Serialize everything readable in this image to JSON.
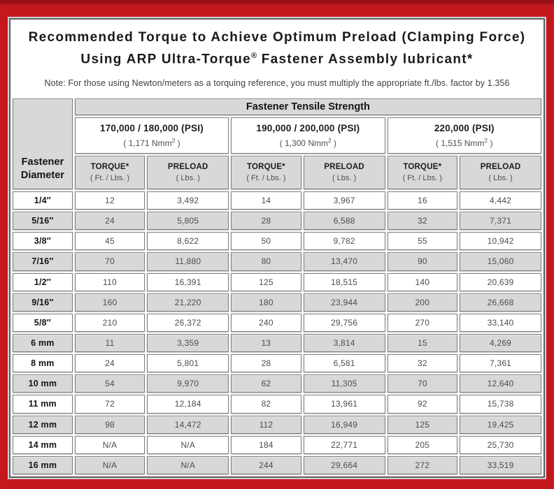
{
  "title": {
    "line1": "Recommended Torque to Achieve Optimum Preload (Clamping Force)",
    "line2_pre": "Using ARP Ultra-Torque",
    "line2_sup": "®",
    "line2_post": " Fastener Assembly lubricant*",
    "note": "Note: For those using Newton/meters as a torquing reference, you must multiply the appropriate ft./lbs. factor by 1.356"
  },
  "table": {
    "corner": {
      "line1": "Fastener",
      "line2": "Diameter"
    },
    "tensile_header": "Fastener Tensile Strength",
    "groups": [
      {
        "psi": "170,000 / 180,000 (PSI)",
        "nmm_pre": "( 1,171 Nmm",
        "nmm_sup": "2",
        "nmm_post": " )"
      },
      {
        "psi": "190,000 / 200,000 (PSI)",
        "nmm_pre": "( 1,300 Nmm",
        "nmm_sup": "2",
        "nmm_post": " )"
      },
      {
        "psi": "220,000 (PSI)",
        "nmm_pre": "( 1,515 Nmm",
        "nmm_sup": "2",
        "nmm_post": " )"
      }
    ],
    "col_heads": {
      "torque_label": "TORQUE*",
      "torque_sub": "( Ft. / Lbs. )",
      "preload_label": "PRELOAD",
      "preload_sub": "( Lbs. )"
    },
    "rows": [
      {
        "dia": "1/4″",
        "values": [
          "12",
          "3,492",
          "14",
          "3,967",
          "16",
          "4,442"
        ]
      },
      {
        "dia": "5/16″",
        "values": [
          "24",
          "5,805",
          "28",
          "6,588",
          "32",
          "7,371"
        ]
      },
      {
        "dia": "3/8″",
        "values": [
          "45",
          "8,622",
          "50",
          "9,782",
          "55",
          "10,942"
        ]
      },
      {
        "dia": "7/16″",
        "values": [
          "70",
          "11,880",
          "80",
          "13,470",
          "90",
          "15,060"
        ]
      },
      {
        "dia": "1/2″",
        "values": [
          "110",
          "16,391",
          "125",
          "18,515",
          "140",
          "20,639"
        ]
      },
      {
        "dia": "9/16″",
        "values": [
          "160",
          "21,220",
          "180",
          "23,944",
          "200",
          "26,668"
        ]
      },
      {
        "dia": "5/8″",
        "values": [
          "210",
          "26,372",
          "240",
          "29,756",
          "270",
          "33,140"
        ]
      },
      {
        "dia": "6 mm",
        "values": [
          "11",
          "3,359",
          "13",
          "3,814",
          "15",
          "4,269"
        ]
      },
      {
        "dia": "8 mm",
        "values": [
          "24",
          "5,801",
          "28",
          "6,581",
          "32",
          "7,361"
        ]
      },
      {
        "dia": "10 mm",
        "values": [
          "54",
          "9,970",
          "62",
          "11,305",
          "70",
          "12,640"
        ]
      },
      {
        "dia": "11 mm",
        "values": [
          "72",
          "12,184",
          "82",
          "13,961",
          "92",
          "15,738"
        ]
      },
      {
        "dia": "12 mm",
        "values": [
          "98",
          "14,472",
          "112",
          "16,949",
          "125",
          "19,425"
        ]
      },
      {
        "dia": "14 mm",
        "values": [
          "N/A",
          "N/A",
          "184",
          "22,771",
          "205",
          "25,730"
        ]
      },
      {
        "dia": "16 mm",
        "values": [
          "N/A",
          "N/A",
          "244",
          "29,664",
          "272",
          "33,519"
        ]
      }
    ]
  },
  "colors": {
    "frame_red": "#c4181e",
    "frame_dark_red": "#9a1218",
    "cell_gray": "#d8d8d8",
    "cell_border_gray": "#7c7c7c",
    "content_border_gray": "#5e5e5e"
  }
}
